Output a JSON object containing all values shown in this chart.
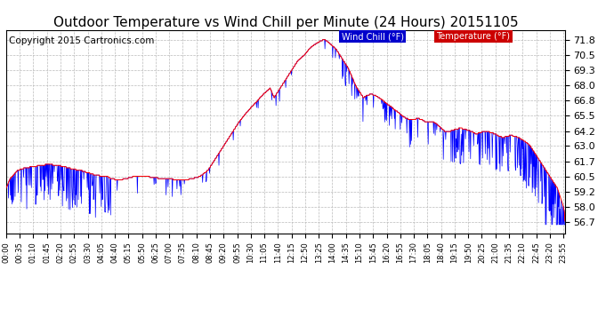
{
  "title": "Outdoor Temperature vs Wind Chill per Minute (24 Hours) 20151105",
  "copyright": "Copyright 2015 Cartronics.com",
  "legend_wind_chill": "Wind Chill (°F)",
  "legend_temperature": "Temperature (°F)",
  "wind_chill_color": "#0000ff",
  "temperature_color": "#ff0000",
  "legend_wc_bg": "#0000cc",
  "legend_temp_bg": "#cc0000",
  "background_color": "#ffffff",
  "plot_bg_color": "#ffffff",
  "grid_color": "#bbbbbb",
  "title_fontsize": 11,
  "copyright_fontsize": 7.5,
  "yticks": [
    56.7,
    58.0,
    59.2,
    60.5,
    61.7,
    63.0,
    64.2,
    65.5,
    66.8,
    68.0,
    69.3,
    70.5,
    71.8
  ],
  "ylim": [
    55.8,
    72.6
  ],
  "num_minutes": 1440,
  "temp_keypoints": [
    [
      0,
      59.5
    ],
    [
      10,
      60.3
    ],
    [
      30,
      61.0
    ],
    [
      50,
      61.2
    ],
    [
      70,
      61.3
    ],
    [
      90,
      61.4
    ],
    [
      110,
      61.5
    ],
    [
      130,
      61.4
    ],
    [
      150,
      61.3
    ],
    [
      170,
      61.1
    ],
    [
      190,
      61.0
    ],
    [
      210,
      60.8
    ],
    [
      230,
      60.6
    ],
    [
      250,
      60.5
    ],
    [
      260,
      60.5
    ],
    [
      270,
      60.3
    ],
    [
      290,
      60.2
    ],
    [
      310,
      60.3
    ],
    [
      330,
      60.5
    ],
    [
      350,
      60.5
    ],
    [
      360,
      60.5
    ],
    [
      380,
      60.4
    ],
    [
      400,
      60.3
    ],
    [
      420,
      60.3
    ],
    [
      440,
      60.2
    ],
    [
      460,
      60.2
    ],
    [
      480,
      60.3
    ],
    [
      500,
      60.5
    ],
    [
      520,
      61.0
    ],
    [
      540,
      62.0
    ],
    [
      560,
      63.0
    ],
    [
      580,
      64.0
    ],
    [
      600,
      65.0
    ],
    [
      620,
      65.8
    ],
    [
      640,
      66.5
    ],
    [
      660,
      67.2
    ],
    [
      680,
      67.8
    ],
    [
      690,
      67.0
    ],
    [
      700,
      67.5
    ],
    [
      710,
      68.0
    ],
    [
      720,
      68.5
    ],
    [
      730,
      69.0
    ],
    [
      740,
      69.5
    ],
    [
      750,
      70.0
    ],
    [
      760,
      70.3
    ],
    [
      770,
      70.6
    ],
    [
      780,
      71.0
    ],
    [
      790,
      71.3
    ],
    [
      800,
      71.5
    ],
    [
      810,
      71.7
    ],
    [
      820,
      71.8
    ],
    [
      830,
      71.6
    ],
    [
      840,
      71.3
    ],
    [
      850,
      71.0
    ],
    [
      860,
      70.5
    ],
    [
      870,
      70.0
    ],
    [
      880,
      69.5
    ],
    [
      890,
      68.8
    ],
    [
      900,
      68.0
    ],
    [
      910,
      67.5
    ],
    [
      920,
      67.0
    ],
    [
      930,
      67.2
    ],
    [
      940,
      67.3
    ],
    [
      950,
      67.2
    ],
    [
      960,
      67.0
    ],
    [
      970,
      66.8
    ],
    [
      980,
      66.5
    ],
    [
      990,
      66.3
    ],
    [
      1000,
      66.0
    ],
    [
      1010,
      65.8
    ],
    [
      1020,
      65.5
    ],
    [
      1030,
      65.3
    ],
    [
      1040,
      65.2
    ],
    [
      1050,
      65.2
    ],
    [
      1060,
      65.3
    ],
    [
      1070,
      65.2
    ],
    [
      1080,
      65.0
    ],
    [
      1090,
      65.0
    ],
    [
      1100,
      65.0
    ],
    [
      1110,
      64.8
    ],
    [
      1120,
      64.5
    ],
    [
      1130,
      64.2
    ],
    [
      1140,
      64.2
    ],
    [
      1150,
      64.3
    ],
    [
      1160,
      64.4
    ],
    [
      1170,
      64.5
    ],
    [
      1180,
      64.4
    ],
    [
      1190,
      64.3
    ],
    [
      1200,
      64.2
    ],
    [
      1210,
      64.0
    ],
    [
      1220,
      64.1
    ],
    [
      1230,
      64.2
    ],
    [
      1240,
      64.2
    ],
    [
      1250,
      64.1
    ],
    [
      1260,
      64.0
    ],
    [
      1270,
      63.8
    ],
    [
      1280,
      63.7
    ],
    [
      1290,
      63.8
    ],
    [
      1300,
      63.9
    ],
    [
      1310,
      63.8
    ],
    [
      1320,
      63.7
    ],
    [
      1330,
      63.5
    ],
    [
      1340,
      63.3
    ],
    [
      1350,
      63.0
    ],
    [
      1360,
      62.5
    ],
    [
      1370,
      62.0
    ],
    [
      1380,
      61.5
    ],
    [
      1390,
      61.0
    ],
    [
      1400,
      60.5
    ],
    [
      1410,
      60.0
    ],
    [
      1420,
      59.5
    ],
    [
      1425,
      59.0
    ],
    [
      1430,
      58.5
    ],
    [
      1435,
      58.0
    ],
    [
      1438,
      57.5
    ],
    [
      1439,
      56.8
    ]
  ]
}
